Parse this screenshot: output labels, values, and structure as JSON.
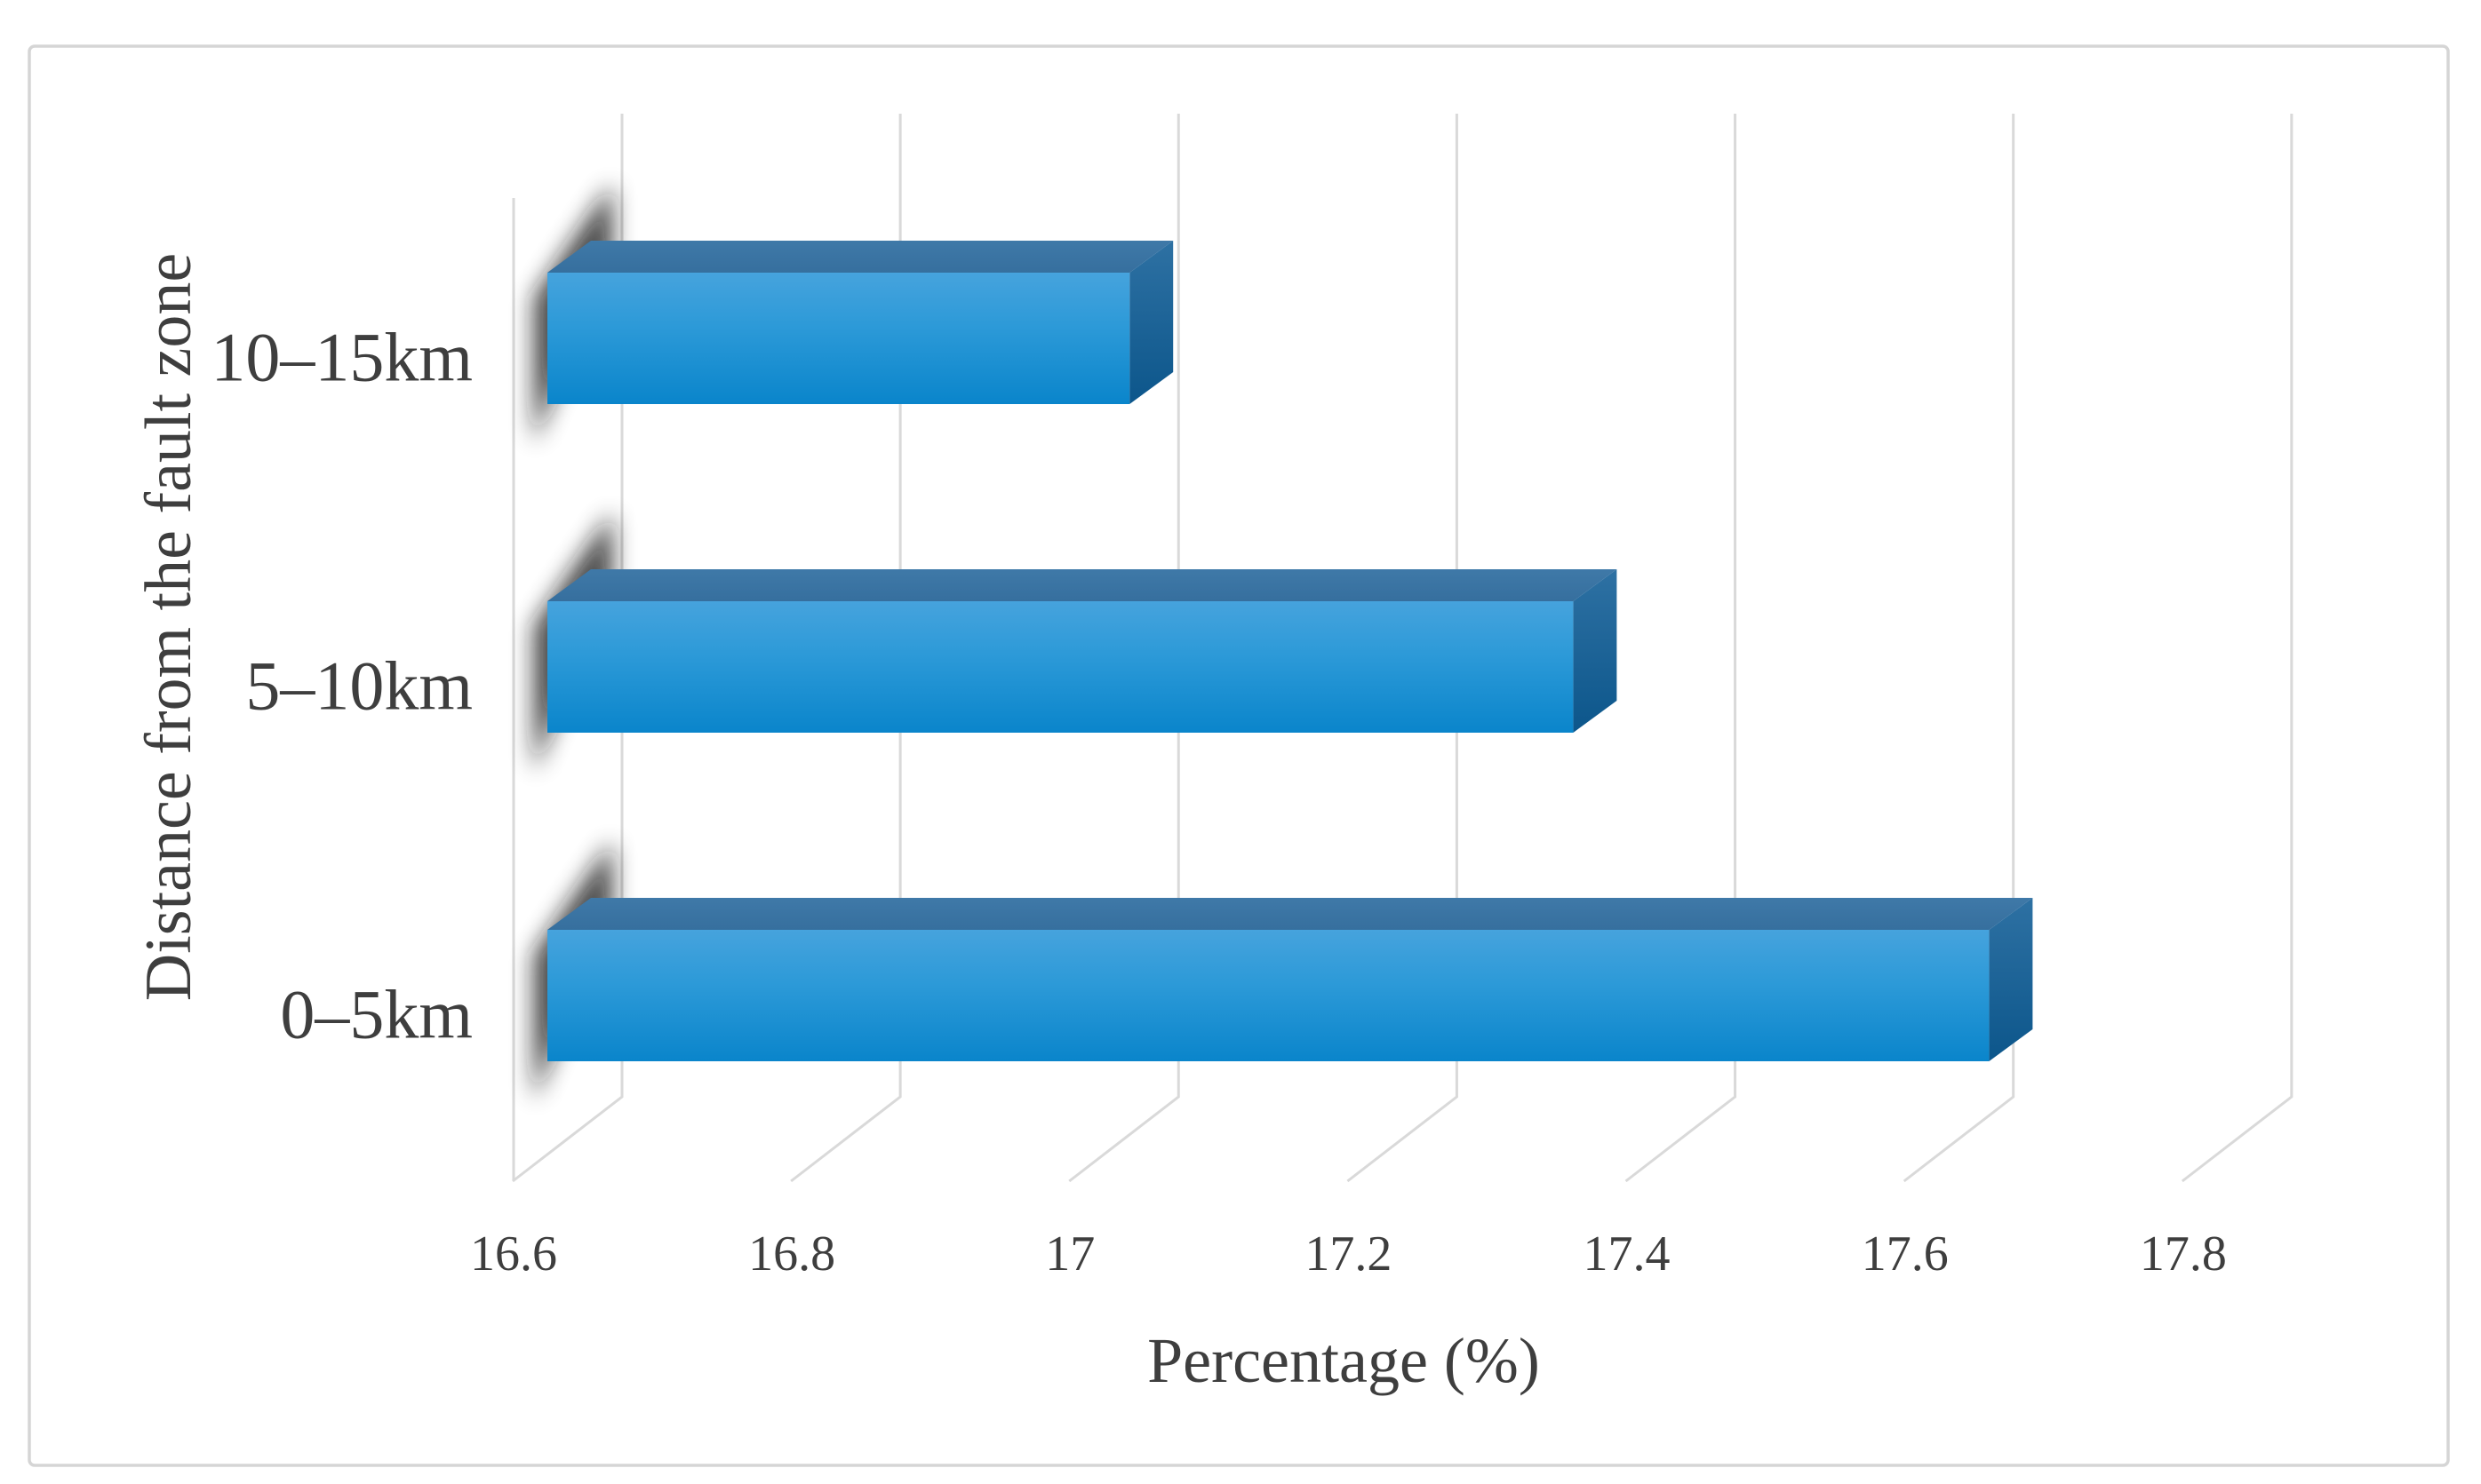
{
  "chart_data": {
    "type": "bar",
    "orientation": "horizontal",
    "style": "3d",
    "title": "",
    "xlabel": "Percentage (%)",
    "ylabel": "Distance from the fault zone",
    "categories": [
      "10–15km",
      "5–10km",
      "0–5km"
    ],
    "values": [
      17.02,
      17.34,
      17.64
    ],
    "series": [
      {
        "name": "Percentage",
        "values": [
          17.02,
          17.34,
          17.64
        ]
      }
    ],
    "xticks": [
      16.6,
      16.8,
      17.0,
      17.2,
      17.4,
      17.6,
      17.8
    ],
    "xtick_labels": [
      "16.6",
      "16.8",
      "17",
      "17.2",
      "17.4",
      "17.6",
      "17.8"
    ],
    "xlim": [
      16.6,
      17.9
    ],
    "grid": true,
    "legend": false
  },
  "colors": {
    "bar_front_top": "#46A3DD",
    "bar_front_mid": "#2D9AD8",
    "bar_front_bottom": "#0A85CB",
    "bar_top_face_light": "#3F79A8",
    "bar_top_face_dark": "#366F9E",
    "bar_side_top": "#2E71A3",
    "bar_side_bottom": "#0C568B",
    "gridline": "#D9D9D9",
    "frame_border": "#D5D5D5",
    "text": "#3E3E3E",
    "shadow": "#161616",
    "background": "#FFFFFF"
  }
}
